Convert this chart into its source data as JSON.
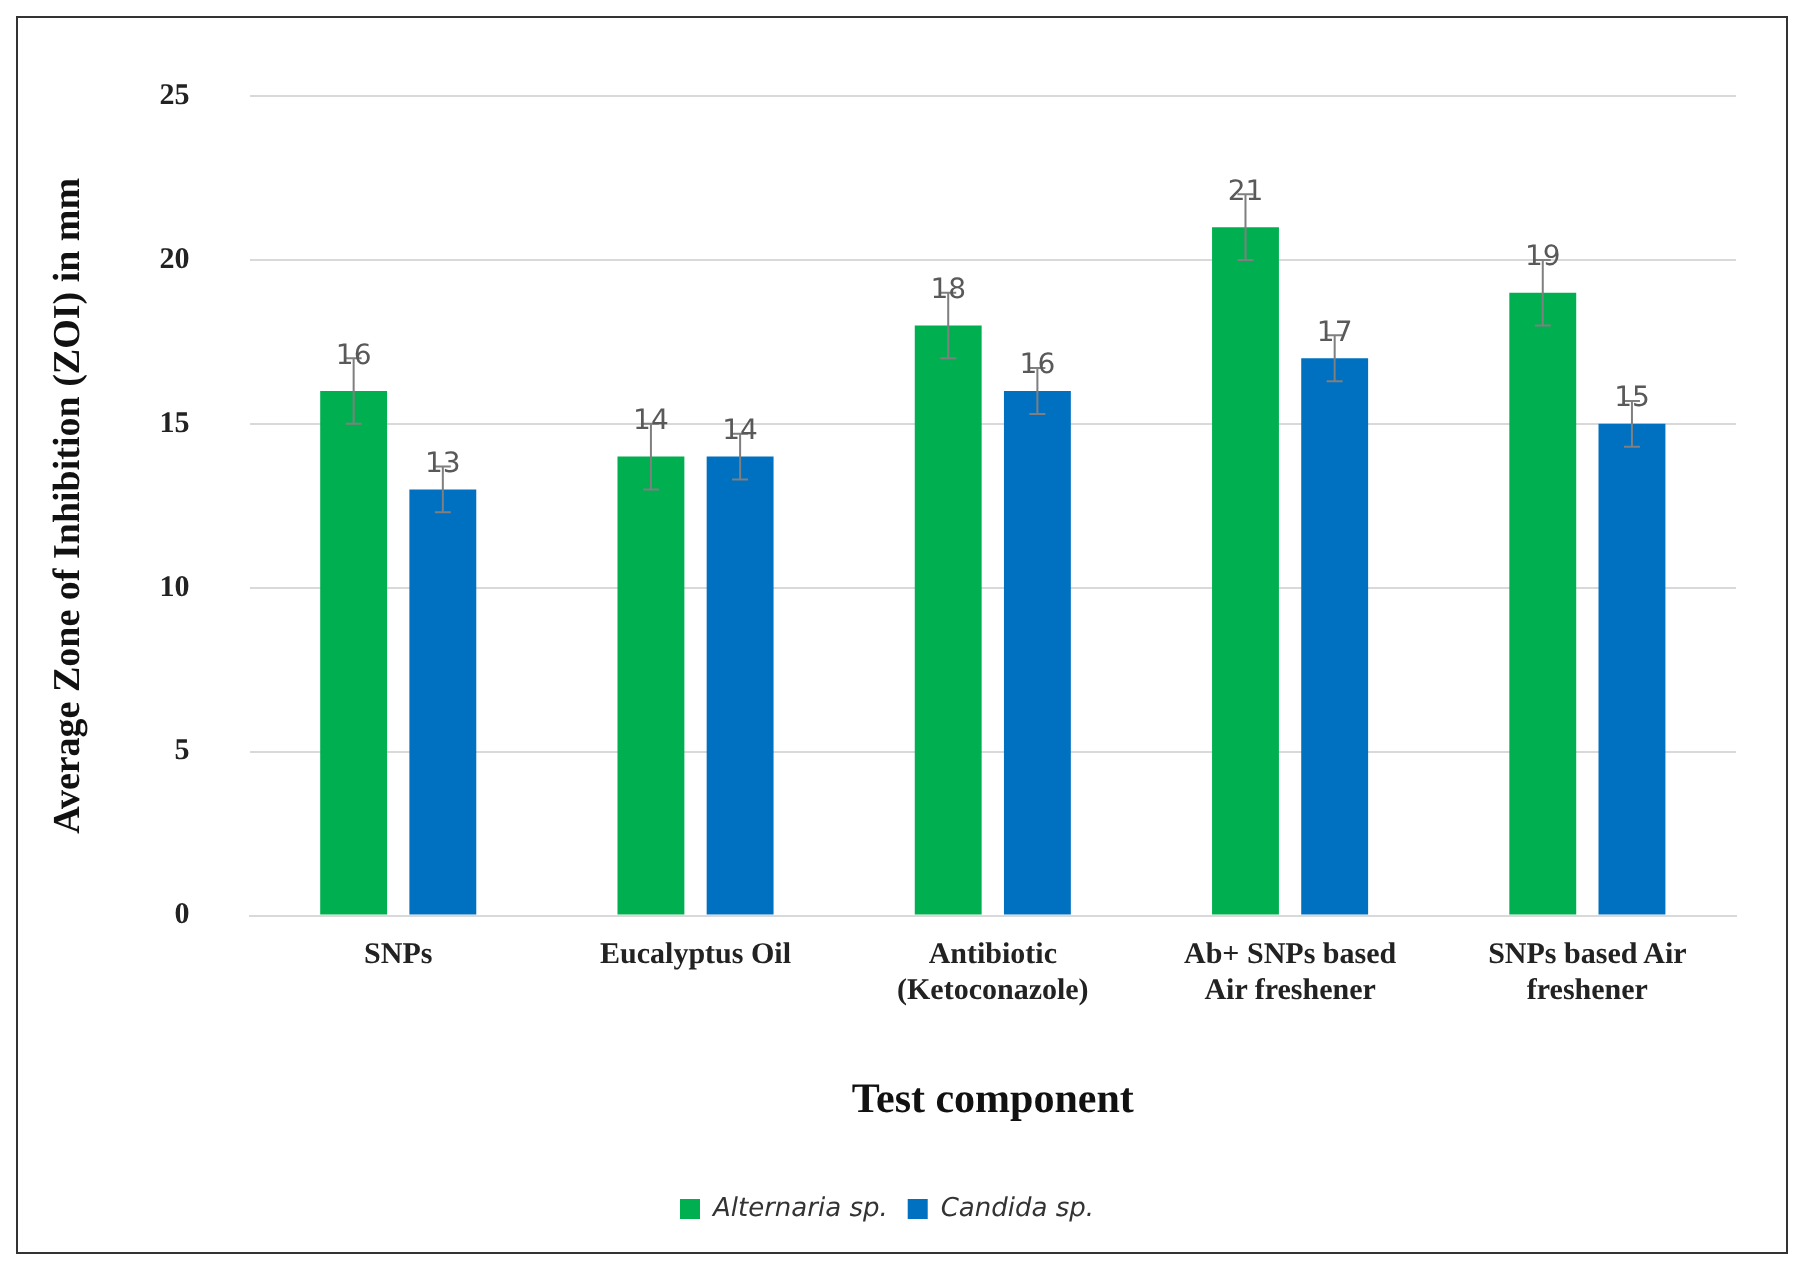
{
  "chart_data": {
    "type": "bar",
    "xlabel": "Test component",
    "ylabel": "Average Zone of Inhibition (ZOI) in mm",
    "categories": [
      "SNPs",
      "Eucalyptus Oil",
      "Antibiotic (Ketoconazole)",
      "Ab+ SNPs based Air freshener",
      "SNPs based Air freshener"
    ],
    "series": [
      {
        "name": "Alternaria sp.",
        "color": "#00b050",
        "values": [
          16,
          14,
          18,
          21,
          19
        ],
        "errors": [
          1,
          1,
          1,
          1,
          1
        ]
      },
      {
        "name": "Candida sp.",
        "color": "#0070c0",
        "values": [
          13,
          14,
          16,
          17,
          15
        ],
        "errors": [
          0.7,
          0.7,
          0.7,
          0.7,
          0.7
        ]
      }
    ],
    "ylim": [
      0,
      25
    ],
    "yticks": [
      0,
      5,
      10,
      15,
      20,
      25
    ],
    "grid": "y",
    "legend": "bottom",
    "data_labels": true
  }
}
